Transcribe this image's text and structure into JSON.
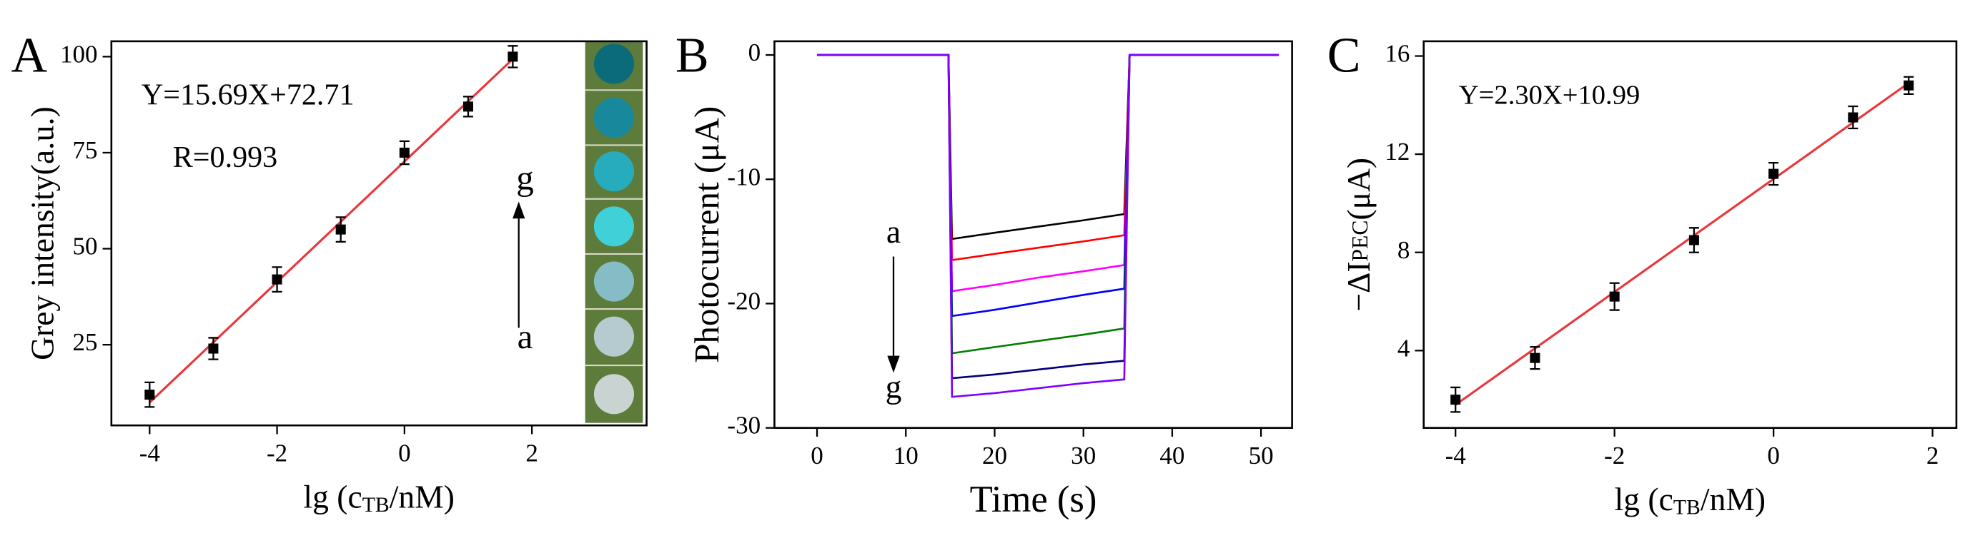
{
  "chart_data": [
    {
      "type": "scatter",
      "panel_label": "A",
      "x_label": [
        "lg (c",
        "TB",
        "/nM)"
      ],
      "y_label": [
        "Grey intensity(a.u.)"
      ],
      "x": [
        -4,
        -3,
        -2,
        -1,
        0,
        1,
        1.7
      ],
      "values": [
        12,
        24,
        42,
        55,
        75,
        87,
        100
      ],
      "errors": [
        3.2,
        2.8,
        3.2,
        3.2,
        3,
        2.6,
        2.8
      ],
      "color": "#000000",
      "fit_line": {
        "slope": 15.69,
        "intercept": 72.71,
        "color": "#e8383d"
      },
      "xlim": [
        -4.6,
        3.8
      ],
      "ylim": [
        4,
        104
      ],
      "xticks": [
        -4,
        -2,
        0,
        2
      ],
      "yticks": [
        25,
        50,
        75,
        100
      ],
      "annotations": [
        "Y=15.69X+72.71",
        "R=0.993",
        "g",
        "a"
      ]
    },
    {
      "type": "line",
      "panel_label": "B",
      "x_label": [
        "Time (s)"
      ],
      "y_label": [
        "Photocurrent (μA)"
      ],
      "x": [
        0,
        14.8,
        15.2,
        20,
        25,
        30,
        34.6,
        35.2,
        40,
        52
      ],
      "series": [
        {
          "color": "#000000",
          "values": [
            0,
            0,
            -14.8,
            -14.3,
            -13.8,
            -13.3,
            -12.8,
            0,
            0,
            0
          ]
        },
        {
          "color": "#ff0000",
          "values": [
            0,
            0,
            -16.5,
            -16.0,
            -15.5,
            -15.0,
            -14.5,
            0,
            0,
            0
          ]
        },
        {
          "color": "#ff00ff",
          "values": [
            0,
            0,
            -19.0,
            -18.5,
            -17.9,
            -17.4,
            -16.9,
            0,
            0,
            0
          ]
        },
        {
          "color": "#0000ff",
          "values": [
            0,
            0,
            -21.0,
            -20.5,
            -19.9,
            -19.3,
            -18.8,
            0,
            0,
            0
          ]
        },
        {
          "color": "#008000",
          "values": [
            0,
            0,
            -24.0,
            -23.5,
            -23.0,
            -22.5,
            -22.0,
            0,
            0,
            0
          ]
        },
        {
          "color": "#000080",
          "values": [
            0,
            0,
            -26.0,
            -25.7,
            -25.3,
            -24.9,
            -24.6,
            0,
            0,
            0
          ]
        },
        {
          "color": "#8000ff",
          "values": [
            0,
            0,
            -27.5,
            -27.2,
            -26.8,
            -26.4,
            -26.1,
            0,
            0,
            0
          ]
        }
      ],
      "xlim": [
        -4.8,
        53.5
      ],
      "ylim": [
        -30,
        1.1
      ],
      "xticks": [
        0,
        10,
        20,
        30,
        40,
        50
      ],
      "yticks": [
        0,
        -10,
        -20,
        -30
      ],
      "annotations": [
        "a",
        "g"
      ]
    },
    {
      "type": "scatter",
      "panel_label": "C",
      "x_label": [
        "lg (c",
        "TB",
        "/nM)"
      ],
      "y_label": [
        "−ΔI",
        "PEC",
        "(μA)"
      ],
      "x": [
        -4,
        -3,
        -2,
        -1,
        0,
        1,
        1.7
      ],
      "values": [
        2.0,
        3.7,
        6.2,
        8.5,
        11.2,
        13.5,
        14.8
      ],
      "errors": [
        0.5,
        0.45,
        0.55,
        0.5,
        0.45,
        0.45,
        0.35
      ],
      "color": "#000000",
      "fit_line": {
        "slope": 2.3,
        "intercept": 10.99,
        "color": "#e8383d"
      },
      "xlim": [
        -4.4,
        2.3
      ],
      "ylim": [
        0.85,
        16.6
      ],
      "xticks": [
        -4,
        -2,
        0,
        2
      ],
      "yticks": [
        4,
        8,
        12,
        16
      ],
      "annotations": [
        "Y=2.30X+10.99"
      ]
    }
  ]
}
